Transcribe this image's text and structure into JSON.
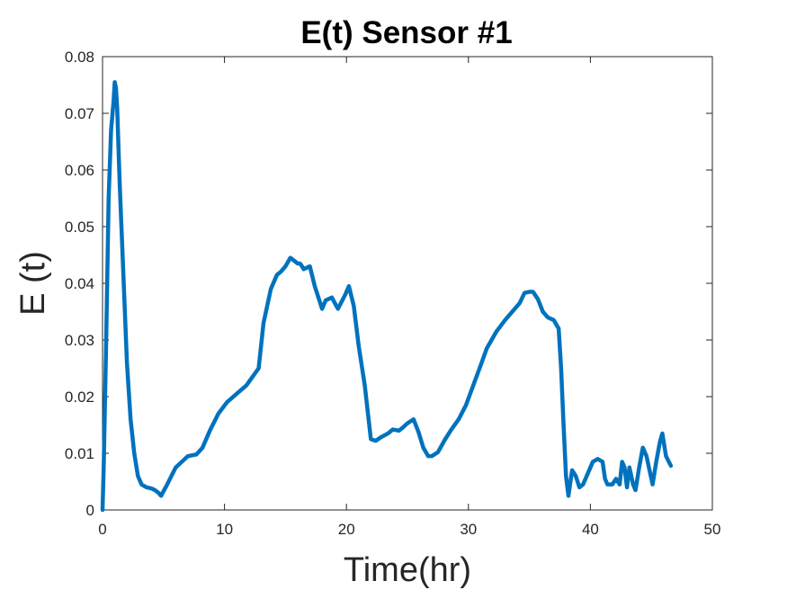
{
  "chart_data": {
    "type": "line",
    "title": "E(t) Sensor #1",
    "xlabel": "Time(hr)",
    "ylabel": "E (t)",
    "xlim": [
      0,
      50
    ],
    "ylim": [
      0,
      0.08
    ],
    "xticks": [
      0,
      10,
      20,
      30,
      40,
      50
    ],
    "xtick_labels": [
      "0",
      "10",
      "20",
      "30",
      "40",
      "50"
    ],
    "yticks": [
      0,
      0.01,
      0.02,
      0.03,
      0.04,
      0.05,
      0.06,
      0.07,
      0.08
    ],
    "ytick_labels": [
      "0",
      "0.01",
      "0.02",
      "0.03",
      "0.04",
      "0.05",
      "0.06",
      "0.07",
      "0.08"
    ],
    "grid": false,
    "series": [
      {
        "color": "#0072BD",
        "x": [
          0.0,
          0.1,
          0.3,
          0.5,
          0.7,
          0.9,
          1.0,
          1.1,
          1.2,
          1.4,
          1.7,
          2.0,
          2.3,
          2.6,
          2.9,
          3.2,
          3.6,
          4.0,
          4.3,
          4.6,
          4.8,
          5.3,
          6.0,
          7.0,
          7.7,
          8.2,
          8.8,
          9.5,
          10.2,
          11.0,
          11.8,
          12.3,
          12.8,
          13.2,
          13.8,
          14.3,
          14.6,
          15.0,
          15.4,
          16.0,
          16.2,
          16.5,
          17.0,
          17.4,
          17.7,
          18.0,
          18.3,
          18.8,
          19.3,
          19.9,
          20.2,
          20.6,
          21.0,
          21.5,
          22.0,
          22.4,
          22.8,
          23.4,
          23.8,
          24.3,
          24.6,
          25.0,
          25.5,
          25.9,
          26.3,
          26.7,
          27.0,
          27.5,
          28.1,
          28.6,
          29.2,
          29.8,
          30.4,
          31.0,
          31.5,
          32.3,
          33.0,
          33.6,
          34.2,
          34.6,
          35.0,
          35.3,
          35.7,
          36.1,
          36.5,
          37.0,
          37.4,
          37.6,
          37.8,
          38.0,
          38.2,
          38.3,
          38.5,
          38.8,
          39.1,
          39.4,
          39.8,
          40.2,
          40.6,
          41.0,
          41.2,
          41.4,
          41.8,
          42.1,
          42.4,
          42.6,
          42.8,
          43.0,
          43.2,
          43.5,
          43.7,
          44.0,
          44.3,
          44.6,
          44.9,
          45.1,
          45.4,
          45.7,
          45.9,
          46.2,
          46.6
        ],
        "y": [
          0.0,
          0.008,
          0.03,
          0.055,
          0.067,
          0.072,
          0.0755,
          0.0745,
          0.071,
          0.058,
          0.042,
          0.026,
          0.016,
          0.01,
          0.006,
          0.0045,
          0.004,
          0.0038,
          0.0035,
          0.003,
          0.0025,
          0.0045,
          0.0075,
          0.0095,
          0.0098,
          0.011,
          0.014,
          0.017,
          0.019,
          0.0205,
          0.022,
          0.0235,
          0.025,
          0.033,
          0.039,
          0.0415,
          0.042,
          0.043,
          0.0445,
          0.0435,
          0.0435,
          0.0425,
          0.043,
          0.0395,
          0.0375,
          0.0355,
          0.037,
          0.0375,
          0.0355,
          0.038,
          0.0395,
          0.036,
          0.029,
          0.022,
          0.0125,
          0.0122,
          0.0128,
          0.0135,
          0.0142,
          0.014,
          0.0145,
          0.0153,
          0.016,
          0.0138,
          0.011,
          0.0095,
          0.0095,
          0.0102,
          0.0125,
          0.0142,
          0.016,
          0.0185,
          0.022,
          0.0255,
          0.0285,
          0.0315,
          0.0335,
          0.035,
          0.0365,
          0.0383,
          0.0385,
          0.0385,
          0.0372,
          0.035,
          0.034,
          0.0335,
          0.032,
          0.025,
          0.015,
          0.006,
          0.0025,
          0.004,
          0.007,
          0.006,
          0.004,
          0.0045,
          0.0065,
          0.0085,
          0.009,
          0.0085,
          0.0055,
          0.0045,
          0.0045,
          0.0055,
          0.0045,
          0.0085,
          0.0075,
          0.004,
          0.0075,
          0.0045,
          0.0035,
          0.0075,
          0.011,
          0.0095,
          0.0065,
          0.0045,
          0.0085,
          0.012,
          0.0135,
          0.0095,
          0.0078
        ]
      }
    ]
  }
}
